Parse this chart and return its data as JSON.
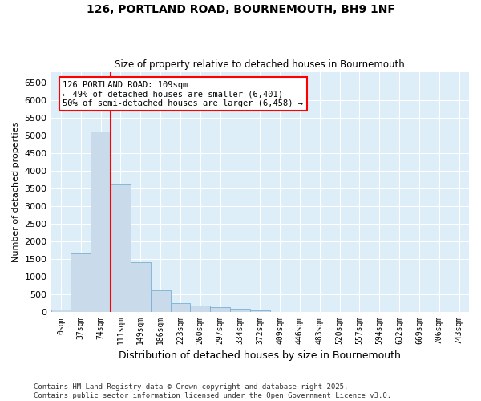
{
  "title": "126, PORTLAND ROAD, BOURNEMOUTH, BH9 1NF",
  "subtitle": "Size of property relative to detached houses in Bournemouth",
  "xlabel": "Distribution of detached houses by size in Bournemouth",
  "ylabel": "Number of detached properties",
  "bar_color": "#c9daea",
  "bar_edge_color": "#7ab0d4",
  "background_color": "#ddeef8",
  "grid_color": "#ffffff",
  "categories": [
    "0sqm",
    "37sqm",
    "74sqm",
    "111sqm",
    "149sqm",
    "186sqm",
    "223sqm",
    "260sqm",
    "297sqm",
    "334sqm",
    "372sqm",
    "409sqm",
    "446sqm",
    "483sqm",
    "520sqm",
    "557sqm",
    "594sqm",
    "632sqm",
    "669sqm",
    "706sqm",
    "743sqm"
  ],
  "bar_values": [
    50,
    1650,
    5100,
    3600,
    1400,
    600,
    250,
    170,
    120,
    70,
    30,
    0,
    0,
    0,
    0,
    0,
    0,
    0,
    0,
    0,
    0
  ],
  "property_line_color": "red",
  "property_line_x": 2.5,
  "ylim": [
    0,
    6800
  ],
  "yticks": [
    0,
    500,
    1000,
    1500,
    2000,
    2500,
    3000,
    3500,
    4000,
    4500,
    5000,
    5500,
    6000,
    6500
  ],
  "annotation_text": "126 PORTLAND ROAD: 109sqm\n← 49% of detached houses are smaller (6,401)\n50% of semi-detached houses are larger (6,458) →",
  "footer_line1": "Contains HM Land Registry data © Crown copyright and database right 2025.",
  "footer_line2": "Contains public sector information licensed under the Open Government Licence v3.0."
}
